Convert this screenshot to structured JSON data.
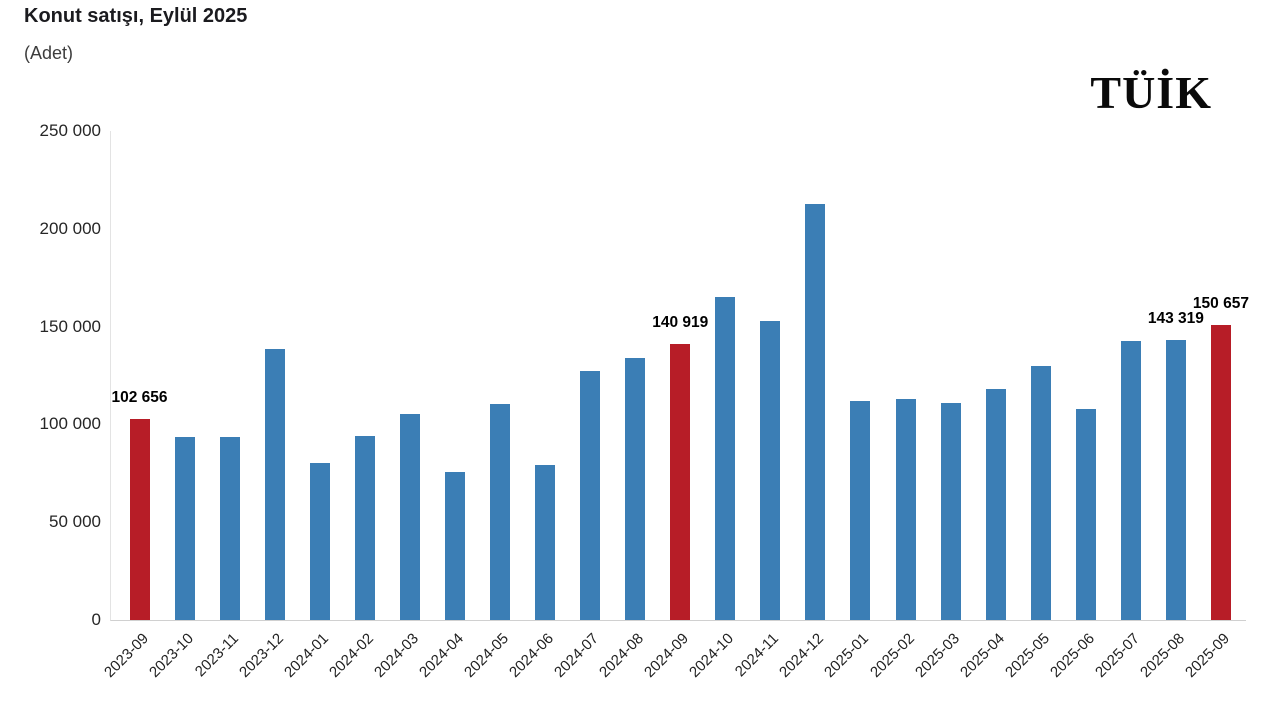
{
  "header": {
    "title": "Konut satışı, Eylül 2025",
    "subtitle": "(Adet)",
    "logo": "TÜİK"
  },
  "chart_data": {
    "type": "bar",
    "title": "Konut satışı, Eylül 2025",
    "ylabel": "(Adet)",
    "xlabel": "",
    "grid": false,
    "legend": "none",
    "ylim": [
      0,
      250000
    ],
    "categories": [
      "2023-09",
      "2023-10",
      "2023-11",
      "2023-12",
      "2024-01",
      "2024-02",
      "2024-03",
      "2024-04",
      "2024-05",
      "2024-06",
      "2024-07",
      "2024-08",
      "2024-09",
      "2024-10",
      "2024-11",
      "2024-12",
      "2025-01",
      "2025-02",
      "2025-03",
      "2025-04",
      "2025-05",
      "2025-06",
      "2025-07",
      "2025-08",
      "2025-09"
    ],
    "values": [
      102656,
      93761,
      93514,
      138577,
      80308,
      93902,
      105476,
      75569,
      110588,
      79313,
      127088,
      134155,
      140919,
      165138,
      153014,
      212637,
      112173,
      112818,
      110795,
      118359,
      130025,
      107723,
      142858,
      143319,
      150657
    ],
    "highlighted_indices": [
      0,
      12,
      24
    ],
    "annotations": [
      {
        "index": 0,
        "text": "102 656"
      },
      {
        "index": 12,
        "text": "140 919"
      },
      {
        "index": 23,
        "text": "143 319"
      },
      {
        "index": 24,
        "text": "150 657"
      }
    ],
    "y_ticks": [
      {
        "value": 0,
        "label": "0"
      },
      {
        "value": 50000,
        "label": "50 000"
      },
      {
        "value": 100000,
        "label": "100 000"
      },
      {
        "value": 150000,
        "label": "150 000"
      },
      {
        "value": 200000,
        "label": "200 000"
      },
      {
        "value": 250000,
        "label": "250 000"
      }
    ],
    "colors": {
      "bar": "#3b7eb5",
      "highlight": "#b71d27",
      "axis": "#d0d0d0"
    }
  }
}
